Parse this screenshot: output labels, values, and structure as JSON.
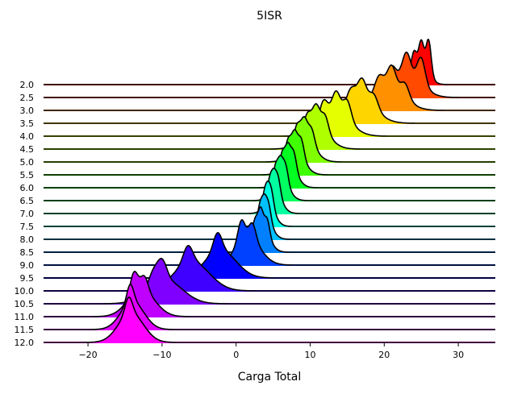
{
  "chart_data": {
    "type": "area",
    "title": "5ISR",
    "xlabel": "Carga Total",
    "ylabel": "",
    "xlim": [
      -26,
      35
    ],
    "xticks": [
      -20,
      -10,
      0,
      10,
      20,
      30
    ],
    "xtick_labels": [
      "−20",
      "−10",
      "0",
      "10",
      "20",
      "30"
    ],
    "grid": false,
    "legend": "none",
    "series": [
      {
        "label": "2.0",
        "color": "#ff0000",
        "mean": 24.9,
        "sd": 0.8,
        "peaks": [
          [
            26.0,
            1.0
          ],
          [
            25.0,
            0.75
          ],
          [
            24.0,
            0.6
          ],
          [
            23.0,
            0.4
          ]
        ]
      },
      {
        "label": "2.5",
        "color": "#ff4a00",
        "mean": 23.0,
        "sd": 1.5,
        "peaks": [
          [
            25.0,
            0.6
          ],
          [
            23.0,
            0.5
          ],
          [
            21.0,
            0.4
          ]
        ]
      },
      {
        "label": "3.0",
        "color": "#ff9000",
        "mean": 20.5,
        "sd": 1.6,
        "peaks": [
          [
            22.8,
            0.3
          ],
          [
            21.0,
            0.45
          ],
          [
            19.3,
            0.3
          ]
        ]
      },
      {
        "label": "3.5",
        "color": "#ffd500",
        "mean": 16.6,
        "sd": 1.6,
        "peaks": [
          [
            18.6,
            0.3
          ],
          [
            17.0,
            0.45
          ],
          [
            15.5,
            0.3
          ]
        ]
      },
      {
        "label": "4.0",
        "color": "#e6ff00",
        "mean": 13.4,
        "sd": 1.5,
        "peaks": [
          [
            15.0,
            0.45
          ],
          [
            13.5,
            0.5
          ],
          [
            11.8,
            0.45
          ]
        ]
      },
      {
        "label": "4.5",
        "color": "#b0ff00",
        "mean": 10.7,
        "sd": 1.3,
        "peaks": [
          [
            12.0,
            0.4
          ],
          [
            10.8,
            0.5
          ],
          [
            9.6,
            0.4
          ]
        ]
      },
      {
        "label": "5.0",
        "color": "#80ff00",
        "mean": 9.1,
        "sd": 1.1,
        "peaks": [
          [
            10.2,
            0.35
          ],
          [
            9.2,
            0.45
          ],
          [
            8.2,
            0.4
          ]
        ]
      },
      {
        "label": "5.5",
        "color": "#40ff00",
        "mean": 7.9,
        "sd": 0.95,
        "peaks": [
          [
            8.8,
            0.4
          ],
          [
            7.9,
            0.45
          ],
          [
            7.0,
            0.4
          ]
        ]
      },
      {
        "label": "6.0",
        "color": "#00ff20",
        "mean": 7.0,
        "sd": 0.85,
        "peaks": [
          [
            7.8,
            0.4
          ],
          [
            7.0,
            0.45
          ],
          [
            6.2,
            0.4
          ]
        ]
      },
      {
        "label": "6.5",
        "color": "#00ff60",
        "mean": 6.0,
        "sd": 0.8,
        "peaks": [
          [
            6.7,
            0.4
          ],
          [
            6.0,
            0.45
          ],
          [
            5.3,
            0.4
          ]
        ]
      },
      {
        "label": "7.0",
        "color": "#00ffa0",
        "mean": 5.1,
        "sd": 0.75,
        "peaks": [
          [
            5.7,
            0.4
          ],
          [
            5.1,
            0.45
          ],
          [
            4.5,
            0.4
          ]
        ]
      },
      {
        "label": "7.5",
        "color": "#00ffe0",
        "mean": 4.3,
        "sd": 0.7,
        "peaks": [
          [
            4.8,
            0.4
          ],
          [
            4.3,
            0.45
          ],
          [
            3.8,
            0.4
          ]
        ]
      },
      {
        "label": "8.0",
        "color": "#00c0ff",
        "mean": 3.8,
        "sd": 0.75,
        "peaks": [
          [
            4.4,
            0.4
          ],
          [
            3.8,
            0.45
          ],
          [
            3.2,
            0.4
          ]
        ]
      },
      {
        "label": "8.5",
        "color": "#0080ff",
        "mean": 3.4,
        "sd": 0.8,
        "peaks": [
          [
            4.2,
            0.35
          ],
          [
            3.3,
            0.45
          ],
          [
            2.5,
            0.35
          ]
        ]
      },
      {
        "label": "9.0",
        "color": "#0040ff",
        "mean": 1.6,
        "sd": 1.3,
        "peaks": [
          [
            2.2,
            0.35
          ],
          [
            0.7,
            0.45
          ]
        ]
      },
      {
        "label": "9.5",
        "color": "#0000ff",
        "mean": -2.1,
        "sd": 1.6,
        "peaks": [
          [
            -2.5,
            0.35
          ]
        ]
      },
      {
        "label": "10.0",
        "color": "#4000ff",
        "mean": -6.0,
        "sd": 1.8,
        "peaks": [
          [
            -6.5,
            0.3
          ]
        ]
      },
      {
        "label": "10.5",
        "color": "#8000ff",
        "mean": -9.6,
        "sd": 1.8,
        "peaks": [
          [
            -10.0,
            0.45
          ],
          [
            -11.2,
            0.3
          ]
        ]
      },
      {
        "label": "11.0",
        "color": "#c000ff",
        "mean": -12.8,
        "sd": 1.4,
        "peaks": [
          [
            -13.8,
            0.45
          ],
          [
            -12.4,
            0.3
          ]
        ]
      },
      {
        "label": "11.5",
        "color": "#e000ff",
        "mean": -14.0,
        "sd": 1.2,
        "peaks": [
          [
            -14.3,
            0.35
          ]
        ]
      },
      {
        "label": "12.0",
        "color": "#ff00ff",
        "mean": -14.2,
        "sd": 1.3,
        "peaks": [
          [
            -14.5,
            0.3
          ]
        ]
      }
    ]
  }
}
